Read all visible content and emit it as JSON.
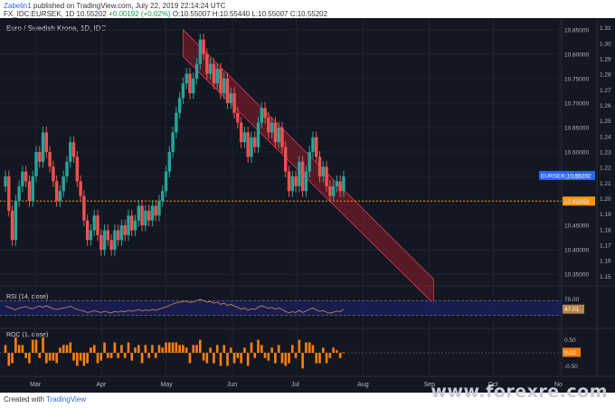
{
  "header": {
    "user": "Zabelin1",
    "published": "published on TradingView.com, July 22, 2019 22:14:24 UTC",
    "symbol": "FX_IDC:EURSEK, 1D",
    "last": "10.55202",
    "change": "+0.00192 (+0.02%)",
    "ohlc": "O:10.55007 H:10.55440 L:10.55007 C:10.55202"
  },
  "footer": {
    "created_with": "Created with",
    "tradingview": "TradingView",
    "watermark": "www.forexre.com"
  },
  "chart_data": [
    {
      "type": "candlestick",
      "title": "Euro / Swedish Krona, 1D, IDC",
      "left_axis": {
        "min": 10.33,
        "max": 10.87,
        "ticks": [
          10.35,
          10.4,
          10.45,
          10.5,
          10.55,
          10.6,
          10.65,
          10.7,
          10.75,
          10.8,
          10.85
        ],
        "labels": [
          "10.35000",
          "10.40000",
          "10.45000",
          "10.50000",
          "10.55000",
          "10.60000",
          "10.65000",
          "10.70000",
          "10.75000",
          "10.80000",
          "10.85000"
        ]
      },
      "right_axis": {
        "min": 1.145,
        "max": 1.315,
        "ticks": [
          1.15,
          1.16,
          1.17,
          1.18,
          1.19,
          1.2,
          1.21,
          1.22,
          1.23,
          1.24,
          1.25,
          1.26,
          1.27,
          1.28,
          1.29,
          1.3,
          1.31
        ],
        "labels": [
          "1.15",
          "1.16",
          "1.17",
          "1.18",
          "1.19",
          "1.20",
          "1.21",
          "1.22",
          "1.23",
          "1.24",
          "1.25",
          "1.26",
          "1.27",
          "1.28",
          "1.29",
          "1.30",
          "1.31"
        ]
      },
      "x_axis": {
        "labels": [
          "Mar",
          "Apr",
          "May",
          "Jun",
          "Jul",
          "Aug",
          "Sep",
          "Oct",
          "No"
        ]
      },
      "price_label": {
        "text": "EURSEK",
        "value": "10.55202"
      },
      "support": {
        "value": 10.49962,
        "label": "10.49962"
      },
      "channel": {
        "upper": [
          [
            "May 08",
            10.85
          ],
          [
            "Sep 02",
            10.34
          ]
        ],
        "lower": [
          [
            "May 08",
            10.795
          ],
          [
            "Sep 02",
            10.29
          ]
        ]
      },
      "closes": [
        10.55,
        10.48,
        10.42,
        10.5,
        10.53,
        10.56,
        10.54,
        10.5,
        10.55,
        10.6,
        10.58,
        10.64,
        10.6,
        10.57,
        10.54,
        10.5,
        10.52,
        10.55,
        10.58,
        10.62,
        10.59,
        10.54,
        10.51,
        10.46,
        10.42,
        10.44,
        10.47,
        10.43,
        10.4,
        10.44,
        10.42,
        10.4,
        10.44,
        10.42,
        10.45,
        10.43,
        10.47,
        10.44,
        10.46,
        10.49,
        10.45,
        10.48,
        10.46,
        10.49,
        10.47,
        10.5,
        10.52,
        10.56,
        10.6,
        10.64,
        10.68,
        10.71,
        10.74,
        10.76,
        10.72,
        10.75,
        10.78,
        10.83,
        10.8,
        10.76,
        10.78,
        10.74,
        10.77,
        10.72,
        10.75,
        10.7,
        10.72,
        10.68,
        10.66,
        10.62,
        10.64,
        10.59,
        10.63,
        10.61,
        10.66,
        10.69,
        10.67,
        10.64,
        10.66,
        10.62,
        10.65,
        10.61,
        10.56,
        10.52,
        10.55,
        10.53,
        10.58,
        10.52,
        10.56,
        10.6,
        10.63,
        10.59,
        10.55,
        10.57,
        10.53,
        10.51,
        10.53,
        10.54,
        10.52,
        10.55
      ]
    },
    {
      "type": "line",
      "title": "RSI (14, close)",
      "value_label": "47.01",
      "ticks": [
        "75.00"
      ],
      "bands": [
        70,
        30
      ],
      "values": [
        55,
        52,
        48,
        45,
        50,
        52,
        54,
        50,
        48,
        53,
        55,
        52,
        56,
        52,
        48,
        46,
        48,
        50,
        52,
        55,
        50,
        46,
        44,
        42,
        38,
        40,
        43,
        40,
        38,
        41,
        39,
        37,
        41,
        39,
        42,
        40,
        44,
        41,
        43,
        46,
        42,
        45,
        43,
        46,
        44,
        47,
        50,
        53,
        57,
        61,
        64,
        66,
        68,
        69,
        65,
        67,
        70,
        74,
        70,
        66,
        68,
        63,
        66,
        60,
        63,
        57,
        60,
        55,
        52,
        47,
        50,
        44,
        48,
        46,
        52,
        56,
        53,
        49,
        52,
        47,
        50,
        46,
        41,
        37,
        40,
        38,
        44,
        38,
        42,
        47,
        50,
        45,
        41,
        43,
        39,
        36,
        39,
        42,
        40,
        47
      ]
    },
    {
      "type": "bar",
      "title": "ROC (1, close)",
      "value_label": "0.02",
      "ticks": [
        "0.50",
        "-0.50"
      ],
      "values": [
        0.3,
        -0.5,
        -0.4,
        0.6,
        0.3,
        0.3,
        -0.2,
        -0.4,
        0.5,
        0.5,
        -0.2,
        0.6,
        -0.4,
        -0.3,
        -0.3,
        -0.4,
        0.2,
        0.3,
        0.3,
        0.4,
        -0.3,
        -0.5,
        -0.3,
        -0.5,
        -0.4,
        0.2,
        0.3,
        -0.4,
        -0.3,
        0.4,
        -0.2,
        -0.2,
        0.4,
        -0.2,
        0.3,
        -0.2,
        0.4,
        -0.3,
        0.2,
        0.3,
        -0.4,
        0.3,
        -0.2,
        0.3,
        -0.2,
        0.3,
        0.2,
        0.4,
        0.4,
        0.4,
        0.4,
        0.3,
        0.3,
        0.2,
        -0.4,
        0.3,
        0.3,
        0.5,
        -0.3,
        -0.4,
        0.2,
        -0.4,
        0.3,
        -0.5,
        0.3,
        -0.5,
        0.2,
        -0.4,
        -0.2,
        -0.4,
        0.2,
        -0.5,
        0.4,
        -0.2,
        0.5,
        0.3,
        -0.2,
        -0.3,
        0.2,
        -0.4,
        0.3,
        -0.4,
        -0.5,
        -0.4,
        0.3,
        -0.2,
        0.5,
        -0.6,
        0.4,
        0.4,
        0.3,
        -0.4,
        -0.4,
        0.2,
        -0.4,
        -0.2,
        0.2,
        0.1,
        -0.2,
        0.02
      ]
    }
  ],
  "colors": {
    "up": "#26a69a",
    "down": "#ef5350",
    "background": "#131722",
    "rsi": "#b9844a",
    "roc": "#ff7f0e",
    "support": "#ff9800",
    "channel": "#8e1d2a"
  }
}
